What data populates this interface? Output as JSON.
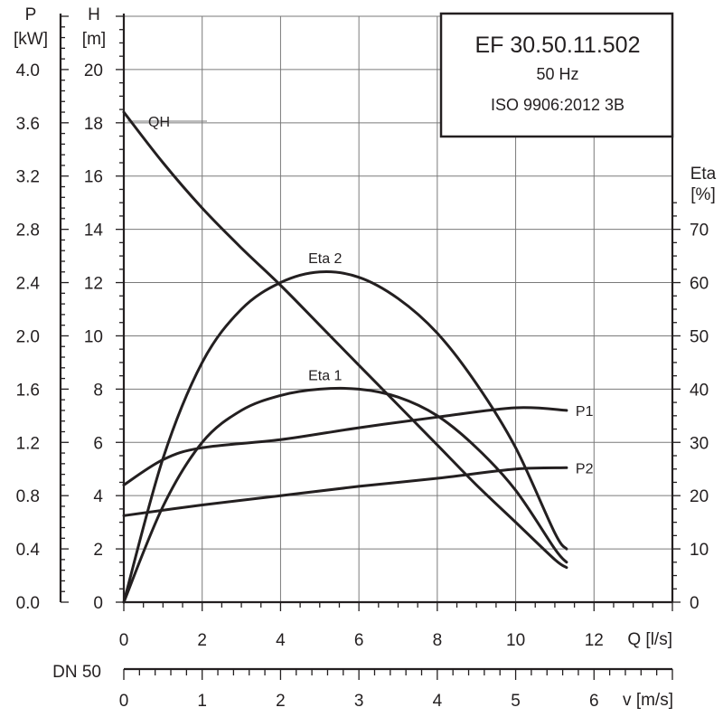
{
  "info_box": {
    "model": "EF 30.50.11.502",
    "frequency": "50 Hz",
    "standard": "ISO 9906:2012 3B"
  },
  "axes": {
    "p": {
      "label": "P",
      "unit": "[kW]"
    },
    "h": {
      "label": "H",
      "unit": "[m]"
    },
    "eta": {
      "label": "Eta",
      "unit": "[%]"
    },
    "q": {
      "label": "Q [l/s]"
    },
    "v": {
      "label": "v [m/s]"
    },
    "dn": {
      "label": "DN 50"
    }
  },
  "chart_data": {
    "type": "line",
    "grid": true,
    "x": {
      "label": "Q [l/s]",
      "range": [
        0,
        14
      ],
      "ticks": [
        0,
        2,
        4,
        6,
        8,
        10,
        12
      ]
    },
    "y_h": {
      "label": "H [m]",
      "range": [
        0,
        22
      ],
      "ticks": [
        0,
        2,
        4,
        6,
        8,
        10,
        12,
        14,
        16,
        18,
        20
      ]
    },
    "y_p": {
      "label": "P [kW]",
      "ticks": [
        0.0,
        0.4,
        0.8,
        1.2,
        1.6,
        2.0,
        2.4,
        2.8,
        3.2,
        3.6,
        4.0
      ],
      "tick_labels": [
        "0.0",
        "0.4",
        "0.8",
        "1.2",
        "1.6",
        "2.0",
        "2.4",
        "2.8",
        "3.2",
        "3.6",
        "4.0"
      ]
    },
    "y_eta": {
      "label": "Eta [%]",
      "ticks": [
        0,
        10,
        20,
        30,
        40,
        50,
        60,
        70
      ]
    },
    "x_v": {
      "label": "v [m/s]",
      "ticks": [
        0,
        1,
        2,
        3,
        4,
        5,
        6
      ],
      "dn": "DN 50"
    },
    "series": [
      {
        "name": "QH",
        "axis": "h",
        "points": [
          [
            0,
            18.4
          ],
          [
            1,
            16.5
          ],
          [
            2,
            14.8
          ],
          [
            3,
            13.3
          ],
          [
            4,
            11.9
          ],
          [
            5,
            10.4
          ],
          [
            6,
            8.9
          ],
          [
            7,
            7.4
          ],
          [
            8,
            5.9
          ],
          [
            9,
            4.4
          ],
          [
            10,
            3.0
          ],
          [
            11,
            1.6
          ],
          [
            11.3,
            1.3
          ]
        ]
      },
      {
        "name": "Eta 2",
        "axis": "eta",
        "points": [
          [
            0,
            0
          ],
          [
            1,
            27
          ],
          [
            2,
            45
          ],
          [
            3,
            55
          ],
          [
            4,
            60
          ],
          [
            5,
            62
          ],
          [
            6,
            61
          ],
          [
            7,
            57
          ],
          [
            8,
            50.5
          ],
          [
            9,
            41
          ],
          [
            10,
            29
          ],
          [
            11,
            13
          ],
          [
            11.3,
            10
          ]
        ]
      },
      {
        "name": "Eta 1",
        "axis": "eta",
        "points": [
          [
            0,
            0
          ],
          [
            1,
            18
          ],
          [
            2,
            30
          ],
          [
            3,
            36
          ],
          [
            4,
            38.8
          ],
          [
            5,
            40
          ],
          [
            6,
            40
          ],
          [
            7,
            38.5
          ],
          [
            8,
            35
          ],
          [
            9,
            29
          ],
          [
            10,
            21
          ],
          [
            11,
            10
          ],
          [
            11.3,
            7.5
          ]
        ]
      },
      {
        "name": "P1",
        "axis": "p",
        "points": [
          [
            0,
            0.88
          ],
          [
            1,
            1.07
          ],
          [
            2,
            1.16
          ],
          [
            4,
            1.22
          ],
          [
            6,
            1.31
          ],
          [
            8,
            1.39
          ],
          [
            10,
            1.46
          ],
          [
            11.3,
            1.44
          ]
        ]
      },
      {
        "name": "P2",
        "axis": "p",
        "points": [
          [
            0,
            0.65
          ],
          [
            2,
            0.73
          ],
          [
            4,
            0.8
          ],
          [
            6,
            0.87
          ],
          [
            8,
            0.93
          ],
          [
            10,
            1.0
          ],
          [
            11.3,
            1.01
          ]
        ]
      }
    ]
  }
}
